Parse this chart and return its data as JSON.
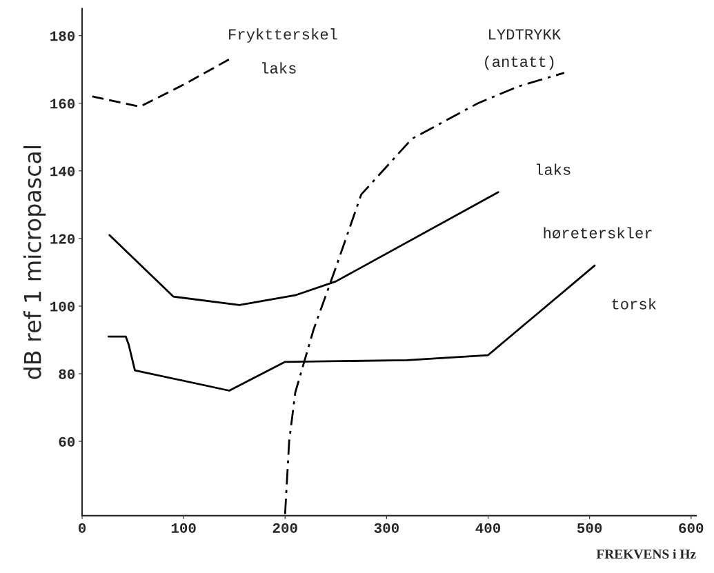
{
  "chart_data": {
    "type": "line",
    "xlabel": "FREKVENS i Hz",
    "ylabel": "dB ref 1 micropascal",
    "xlim": [
      0,
      605
    ],
    "ylim": [
      38,
      188
    ],
    "xticks": [
      0,
      100,
      200,
      300,
      400,
      500,
      600
    ],
    "yticks": [
      60,
      80,
      100,
      120,
      140,
      160,
      180
    ],
    "grid": false,
    "legend": false,
    "marker": "none",
    "series": [
      {
        "color": "#000000",
        "line_style": "dashed",
        "x": [
          10,
          57,
          100,
          145
        ],
        "values": [
          162,
          159,
          165.5,
          173
        ]
      },
      {
        "color": "#000000",
        "line_style": "solid",
        "x": [
          27,
          90,
          155,
          210,
          250,
          410
        ],
        "values": [
          121,
          102.8,
          100.3,
          103.2,
          107.3,
          133.7
        ]
      },
      {
        "color": "#000000",
        "line_style": "solid",
        "x": [
          26,
          43,
          46,
          52,
          145,
          200,
          320,
          400,
          505
        ],
        "values": [
          91,
          91,
          88.5,
          81,
          75,
          83.5,
          84,
          85.5,
          112
        ]
      },
      {
        "color": "#000000",
        "line_style": "dashdot",
        "x": [
          200,
          204,
          210,
          228,
          250,
          275,
          325,
          390,
          430,
          475
        ],
        "values": [
          38.5,
          60,
          74.4,
          93,
          111.4,
          133,
          149.5,
          160,
          165,
          169
        ]
      }
    ],
    "annotations": [
      "Fryktterskel",
      "laks",
      "LYDTRYKK",
      "(antatt)",
      "laks",
      "høreterskler",
      "torsk"
    ]
  }
}
